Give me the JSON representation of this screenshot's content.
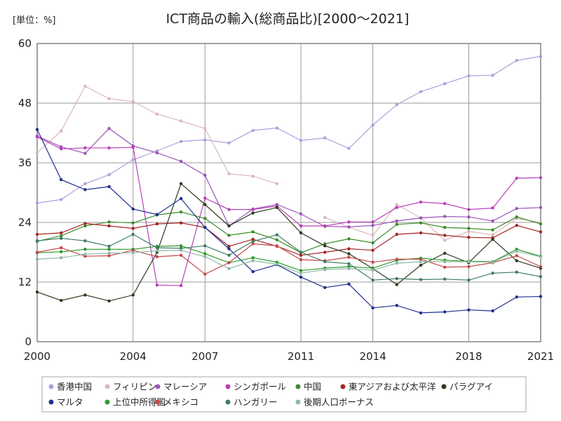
{
  "chart_data": {
    "type": "line",
    "title": "ICT商品の輸入(総商品比)[2000～2021]",
    "unit_label": "[単位：%]",
    "xlabel": "",
    "ylabel": "",
    "xlim": [
      2000,
      2021
    ],
    "ylim": [
      0,
      60
    ],
    "yticks": [
      0,
      12,
      24,
      36,
      48,
      60
    ],
    "xticks": [
      2000,
      2004,
      2007,
      2011,
      2014,
      2018,
      2021
    ],
    "grid": true,
    "legend_position": "bottom",
    "x": [
      2000,
      2001,
      2002,
      2003,
      2004,
      2005,
      2006,
      2007,
      2008,
      2009,
      2010,
      2011,
      2012,
      2013,
      2014,
      2015,
      2016,
      2017,
      2018,
      2019,
      2020,
      2021
    ],
    "series": [
      {
        "name": "香港中国",
        "color": "#b39ddb",
        "values": [
          27.9,
          28.6,
          31.8,
          33.6,
          36.6,
          38.4,
          40.3,
          40.6,
          40.0,
          42.5,
          43.0,
          40.5,
          41.0,
          38.9,
          43.6,
          47.7,
          50.3,
          51.9,
          53.5,
          53.6,
          56.6,
          57.4
        ]
      },
      {
        "name": "フィリピン",
        "color": "#d9b8bc",
        "values": [
          38.0,
          42.4,
          51.4,
          48.9,
          48.3,
          45.8,
          44.4,
          42.9,
          33.8,
          33.3,
          31.8,
          null,
          25.0,
          23.0,
          21.4,
          27.6,
          24.9,
          20.4,
          22.2,
          21.5,
          24.8,
          24.0
        ]
      },
      {
        "name": "マレーシア",
        "color": "#9c55b8",
        "values": [
          41.4,
          39.2,
          37.9,
          42.9,
          39.4,
          38.0,
          36.3,
          33.5,
          23.3,
          26.7,
          27.6,
          25.7,
          23.2,
          23.1,
          23.4,
          24.3,
          24.9,
          25.2,
          25.1,
          24.3,
          26.8,
          27.0
        ]
      },
      {
        "name": "シンガポール",
        "color": "#b940b9",
        "values": [
          41.2,
          38.8,
          39.0,
          39.0,
          39.1,
          11.4,
          11.3,
          28.9,
          26.6,
          26.6,
          27.3,
          23.3,
          23.3,
          24.1,
          24.1,
          27.0,
          28.1,
          27.8,
          26.6,
          26.9,
          32.9,
          33.0
        ]
      },
      {
        "name": "中国",
        "color": "#3a8c2a",
        "values": [
          20.2,
          21.3,
          23.3,
          24.1,
          23.9,
          25.5,
          26.1,
          24.8,
          21.4,
          22.1,
          20.5,
          17.9,
          19.7,
          20.7,
          19.9,
          23.6,
          23.9,
          23.0,
          22.8,
          22.5,
          25.1,
          23.7
        ]
      },
      {
        "name": "東アジアおよび太平洋",
        "color": "#a52525",
        "values": [
          21.6,
          21.9,
          23.8,
          23.3,
          22.8,
          23.7,
          23.9,
          23.0,
          19.2,
          20.6,
          19.2,
          17.4,
          18.0,
          18.7,
          18.4,
          21.6,
          21.9,
          21.4,
          21.0,
          20.9,
          23.4,
          22.1
        ]
      },
      {
        "name": "パラグアイ",
        "color": "#2e3a20",
        "values": [
          10.0,
          8.3,
          9.4,
          8.2,
          9.4,
          18.0,
          31.8,
          27.6,
          23.3,
          25.9,
          27.0,
          21.9,
          19.3,
          17.7,
          14.7,
          11.5,
          15.4,
          17.8,
          15.9,
          20.6,
          16.3,
          14.8
        ]
      },
      {
        "name": "マルタ",
        "color": "#1f2f8f",
        "values": [
          42.7,
          32.6,
          30.6,
          31.2,
          26.7,
          25.6,
          28.8,
          23.0,
          18.7,
          14.1,
          15.5,
          13.0,
          10.9,
          11.6,
          6.8,
          7.3,
          5.8,
          6.0,
          6.4,
          6.2,
          9.0,
          9.1
        ]
      },
      {
        "name": "上位中所得国",
        "color": "#2a9a2a",
        "values": [
          17.9,
          18.1,
          18.6,
          18.6,
          18.6,
          19.2,
          19.3,
          17.7,
          15.9,
          16.9,
          16.0,
          14.3,
          14.8,
          15.1,
          14.8,
          16.4,
          16.8,
          16.4,
          16.2,
          16.1,
          18.6,
          17.2
        ]
      },
      {
        "name": "メキシコ",
        "color": "#c44a4a",
        "values": [
          18.0,
          18.9,
          17.2,
          17.3,
          18.4,
          17.1,
          17.4,
          13.6,
          15.9,
          19.7,
          19.3,
          16.5,
          16.3,
          17.0,
          16.0,
          16.6,
          16.6,
          15.0,
          15.1,
          15.9,
          17.3,
          15.1
        ]
      },
      {
        "name": "ハンガリー",
        "color": "#3f7a63",
        "values": [
          20.3,
          20.8,
          20.3,
          19.2,
          21.6,
          18.9,
          18.8,
          19.3,
          17.4,
          20.2,
          21.5,
          18.0,
          16.1,
          15.7,
          12.4,
          12.7,
          12.5,
          12.6,
          12.4,
          13.8,
          14.0,
          13.1
        ]
      },
      {
        "name": "後期人口ボーナス",
        "color": "#8fb8a6",
        "values": [
          16.6,
          16.9,
          17.6,
          17.8,
          17.9,
          18.3,
          18.4,
          17.1,
          14.7,
          16.3,
          15.6,
          13.8,
          14.5,
          14.7,
          14.4,
          15.8,
          16.1,
          16.1,
          16.1,
          16.0,
          18.2,
          17.1
        ]
      }
    ]
  }
}
